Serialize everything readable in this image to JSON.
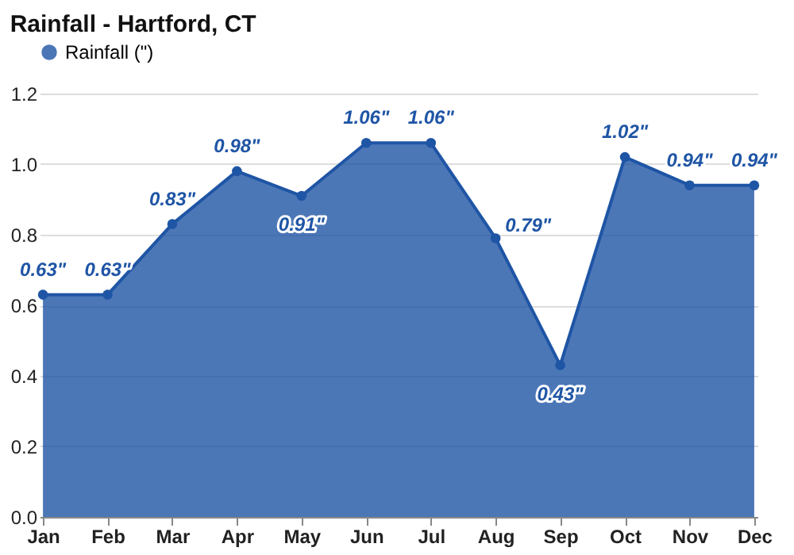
{
  "chart_data": {
    "type": "area",
    "title": "Rainfall - Hartford, CT",
    "categories": [
      "Jan",
      "Feb",
      "Mar",
      "Apr",
      "May",
      "Jun",
      "Jul",
      "Aug",
      "Sep",
      "Oct",
      "Nov",
      "Dec"
    ],
    "series": [
      {
        "name": "Rainfall (\")",
        "color": "#1f55a5",
        "values": [
          0.63,
          0.63,
          0.83,
          0.98,
          0.91,
          1.06,
          1.06,
          0.79,
          0.43,
          1.02,
          0.94,
          0.94
        ],
        "value_labels": [
          "0.63\"",
          "0.63\"",
          "0.83\"",
          "0.98\"",
          "0.91\"",
          "1.06\"",
          "1.06\"",
          "0.79\"",
          "0.43\"",
          "1.02\"",
          "0.94\"",
          "0.94\""
        ]
      }
    ],
    "ylim": [
      0,
      1.2
    ],
    "yticks": [
      {
        "value": 0,
        "label": "0.0"
      },
      0.2,
      0.4,
      0.6,
      0.8,
      {
        "value": 1,
        "label": "1.0"
      },
      1.2
    ],
    "grid": "y",
    "legend": "top left",
    "marker": "circle"
  }
}
